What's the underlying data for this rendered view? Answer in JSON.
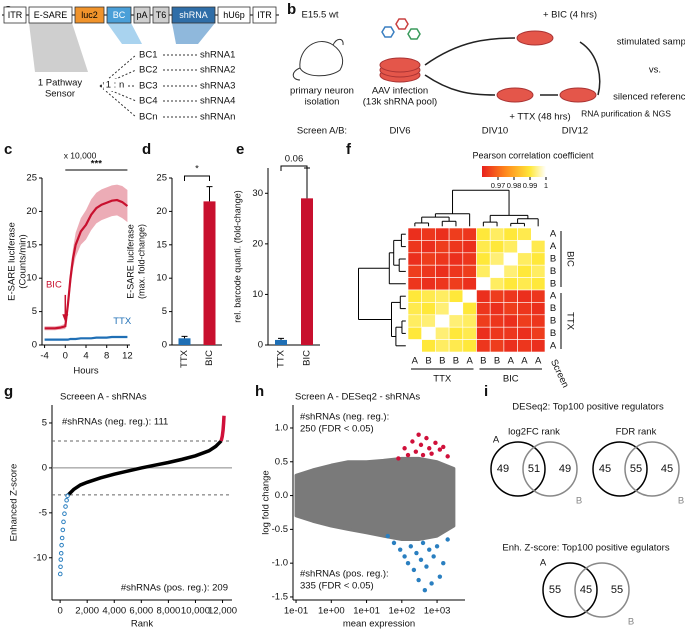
{
  "panel_labels": [
    "a",
    "b",
    "c",
    "d",
    "e",
    "f",
    "g",
    "h",
    "i"
  ],
  "panel_a": {
    "construct": [
      "ITR",
      "E-SARE",
      "luc2",
      "BC",
      "pA",
      "T6",
      "shRNA",
      "hU6p",
      "ITR"
    ],
    "sensor": [
      "1 Pathway",
      "Sensor"
    ],
    "ratio": "1 : n",
    "barcodes": [
      "BC1",
      "BC2",
      "BC3",
      "BC4",
      "BCn"
    ],
    "shrnas": [
      "shRNA1",
      "shRNA2",
      "shRNA3",
      "shRNA4",
      "shRNAn"
    ]
  },
  "panel_b": {
    "mouse": "E15.5 wt",
    "isolation": [
      "primary neuron",
      "isolation"
    ],
    "infection": [
      "AAV infection",
      "(13k shRNA pool)"
    ],
    "bic": "+ BIC (4 hrs)",
    "ttx": "+ TTX (48 hrs)",
    "stimulated": "stimulated sample",
    "vs": "vs.",
    "silenced": "silenced reference",
    "ngs": "RNA purification & NGS",
    "screen": "Screen A/B:",
    "days": [
      "DIV6",
      "DIV10",
      "DIV12"
    ]
  },
  "chart_data": [
    {
      "type": "line",
      "ylabel": [
        "E-SARE luciferase",
        "(Counts/min)"
      ],
      "xlabel": "Hours",
      "y_multiplier": "x 10,000",
      "x": [
        -4,
        -3,
        -2,
        -1,
        0,
        0.5,
        1,
        1.5,
        2,
        3,
        4,
        5,
        6,
        7,
        8,
        9,
        10,
        11,
        12
      ],
      "xlim": [
        -4.5,
        12.5
      ],
      "ylim": [
        0,
        25
      ],
      "xticks": [
        -4,
        0,
        4,
        8,
        12
      ],
      "yticks": [
        0,
        5,
        10,
        15,
        20,
        25
      ],
      "series": [
        {
          "name": "BIC",
          "color": "#c8102e",
          "values": [
            2.5,
            2.5,
            2.5,
            2.6,
            2.8,
            6,
            10,
            13,
            15,
            17,
            18,
            19.5,
            20.5,
            21,
            21.3,
            21.6,
            21.7,
            21.4,
            20.8
          ],
          "upper": [
            2.8,
            2.8,
            2.8,
            2.9,
            3.2,
            7,
            11.5,
            14.5,
            16.8,
            19,
            20.2,
            21.8,
            22.8,
            23.3,
            23.6,
            23.9,
            24,
            23.8,
            23.2
          ],
          "lower": [
            2.2,
            2.2,
            2.2,
            2.3,
            2.4,
            5,
            8.5,
            11.5,
            13.2,
            15,
            15.8,
            17.2,
            18.2,
            18.7,
            19,
            19.3,
            19.4,
            19,
            18.4
          ]
        },
        {
          "name": "TTX",
          "color": "#1f6fb5",
          "values": [
            0.8,
            0.8,
            0.8,
            0.8,
            0.8,
            0.8,
            0.9,
            0.9,
            0.9,
            1,
            1,
            1,
            1.1,
            1.1,
            1.1,
            1.2,
            1.2,
            1.2,
            1.2
          ]
        }
      ],
      "significance": "***",
      "significance_range": [
        0,
        12
      ],
      "arrow_at": 0
    },
    {
      "type": "bar",
      "ylabel": [
        "E-SARE luciferase",
        "(max. fold-change)"
      ],
      "categories": [
        "TTX",
        "BIC"
      ],
      "values": [
        1,
        21.5
      ],
      "errors": [
        0.3,
        2.2
      ],
      "colors": [
        "#1f6fb5",
        "#c8102e"
      ],
      "ylim": [
        0,
        25
      ],
      "yticks": [
        0,
        5,
        10,
        15,
        20,
        25
      ],
      "significance": "*"
    },
    {
      "type": "bar",
      "ylabel": [
        "rel. barcode quanti. (fold-change)"
      ],
      "categories": [
        "TTX",
        "BIC"
      ],
      "values": [
        1,
        29
      ],
      "errors": [
        0.3,
        6
      ],
      "colors": [
        "#1f6fb5",
        "#c8102e"
      ],
      "ylim": [
        0,
        35
      ],
      "yticks": [
        0,
        10,
        20,
        30
      ],
      "significance": "0.06"
    },
    {
      "type": "heatmap",
      "colorbar_title": "Pearson correlation coefficient",
      "colorlim": [
        0.96,
        1
      ],
      "colorbar_ticks": [
        0.97,
        0.98,
        0.99,
        1
      ],
      "color_stops": [
        0.96,
        0.975,
        0.99,
        1
      ],
      "colors": [
        "#e8211d",
        "#ff8a1c",
        "#ffe83a",
        "#ffffff"
      ],
      "row_labels": [
        "A",
        "A",
        "B",
        "B",
        "B",
        "A",
        "B",
        "B",
        "B",
        "A"
      ],
      "col_labels": [
        "A",
        "B",
        "B",
        "B",
        "A",
        "B",
        "B",
        "A",
        "A",
        "A"
      ],
      "row_groups": [
        "BIC",
        "TTX"
      ],
      "col_groups": [
        "TTX",
        "BIC"
      ],
      "screen_label": "Screen",
      "values": [
        [
          0.962,
          0.963,
          0.962,
          0.964,
          0.963,
          0.99,
          0.992,
          0.99,
          0.991,
          1
        ],
        [
          0.963,
          0.962,
          0.964,
          0.963,
          0.962,
          0.991,
          0.99,
          0.992,
          1,
          0.991
        ],
        [
          0.962,
          0.964,
          0.963,
          0.962,
          0.963,
          0.99,
          0.993,
          1,
          0.992,
          0.99
        ],
        [
          0.964,
          0.963,
          0.962,
          0.963,
          0.964,
          0.992,
          1,
          0.993,
          0.99,
          0.992
        ],
        [
          0.963,
          0.962,
          0.963,
          0.964,
          0.962,
          1,
          0.992,
          0.99,
          0.991,
          0.99
        ],
        [
          0.99,
          0.991,
          0.992,
          0.99,
          1,
          0.962,
          0.964,
          0.963,
          0.962,
          0.963
        ],
        [
          0.991,
          0.99,
          0.993,
          1,
          0.99,
          0.963,
          0.962,
          0.964,
          0.963,
          0.962
        ],
        [
          0.992,
          0.993,
          1,
          0.993,
          0.992,
          0.964,
          0.963,
          0.962,
          0.964,
          0.963
        ],
        [
          0.99,
          1,
          0.993,
          0.99,
          0.991,
          0.962,
          0.963,
          0.963,
          0.962,
          0.964
        ],
        [
          1,
          0.99,
          0.992,
          0.991,
          0.99,
          0.963,
          0.964,
          0.962,
          0.963,
          0.962
        ]
      ]
    },
    {
      "type": "curve",
      "title": "Screeen A - shRNAs",
      "xlabel": "Rank",
      "ylabel": "Enhanced Z-score",
      "annotations": [
        "#shRNAs (neg. reg.): 111",
        "#shRNAs (pos. reg.): 209"
      ],
      "xlim": [
        -600,
        12700
      ],
      "ylim": [
        -14.7,
        7
      ],
      "xticks": [
        0,
        {
          "value": 2000,
          "label": "2,000"
        },
        {
          "value": 4000,
          "label": "4,000"
        },
        {
          "value": 6000,
          "label": "6,000"
        },
        {
          "value": 8000,
          "label": "8,000"
        },
        {
          "value": 10000,
          "label": "10,000"
        },
        {
          "value": 12000,
          "label": "12,000"
        }
      ],
      "yticks": [
        -10,
        -5,
        0,
        5
      ],
      "dashed_lines": [
        -3,
        3
      ],
      "zero_line": 0,
      "series": [
        {
          "color": "#000000",
          "style": "line",
          "x": [
            600,
            1000,
            1500,
            2000,
            3000,
            4000,
            5000,
            6000,
            7000,
            8000,
            9000,
            10000,
            11000,
            11500,
            11900
          ],
          "values": [
            -3,
            -2.4,
            -1.9,
            -1.6,
            -1.1,
            -0.7,
            -0.35,
            0,
            0.3,
            0.6,
            0.95,
            1.35,
            1.9,
            2.4,
            3
          ]
        },
        {
          "color": "#2a7fc0",
          "style": "points",
          "x": [
            10,
            30,
            50,
            80,
            110,
            150,
            200,
            250,
            320,
            400,
            480,
            550
          ],
          "values": [
            -11.8,
            -11,
            -10.2,
            -9.5,
            -8.6,
            -7.8,
            -6.9,
            -6,
            -5.1,
            -4.3,
            -3.6,
            -3.1
          ]
        },
        {
          "color": "#d0103a",
          "style": "line",
          "x": [
            11900,
            11980,
            12040,
            12080,
            12110
          ],
          "values": [
            3,
            3.5,
            4.2,
            5,
            5.8
          ]
        }
      ]
    },
    {
      "type": "scatter",
      "title": "Screen A - DESeq2 - shRNAs",
      "xlabel": "mean expression",
      "ylabel": "log fold change",
      "annotations": [
        [
          "#shRNAs (neg. reg.):",
          "250 (FDR < 0.05)"
        ],
        [
          "#shRNAs (pos. reg.):",
          "335 (FDR < 0.05)"
        ]
      ],
      "log_x": true,
      "xlim": [
        0.082,
        6200
      ],
      "ylim": [
        -1.545,
        1.34
      ],
      "xticks": [
        {
          "value": 0.1,
          "label": "1e-01"
        },
        {
          "value": 1,
          "label": "1e+00"
        },
        {
          "value": 10,
          "label": "1e+01"
        },
        {
          "value": 100,
          "label": "1e+02"
        },
        {
          "value": 1000,
          "label": "1e+03"
        }
      ],
      "yticks": [
        -1.5,
        {
          "value": -1,
          "label": "-1.0"
        },
        -0.5,
        {
          "value": 0,
          "label": "0.0"
        },
        0.5,
        {
          "value": 1,
          "label": "1.0"
        }
      ],
      "cloud": {
        "color": "#7a7a7a",
        "x": [
          0.1,
          0.3,
          1,
          3,
          10,
          30,
          100,
          300,
          1000,
          3000
        ],
        "upper": [
          0.3,
          0.38,
          0.45,
          0.5,
          0.5,
          0.52,
          0.55,
          0.55,
          0.5,
          0.4
        ],
        "lower": [
          -0.3,
          -0.38,
          -0.45,
          -0.5,
          -0.55,
          -0.6,
          -0.65,
          -0.65,
          -0.6,
          -0.45
        ]
      },
      "series": [
        {
          "color": "#d0103a",
          "x": [
            80,
            120,
            150,
            200,
            250,
            300,
            350,
            400,
            500,
            600,
            700,
            900,
            1200,
            1500,
            2000
          ],
          "values": [
            0.55,
            0.7,
            0.6,
            0.8,
            0.65,
            0.9,
            0.75,
            0.6,
            0.85,
            0.7,
            0.62,
            0.78,
            0.68,
            0.72,
            0.58
          ]
        },
        {
          "color": "#2a7fc0",
          "x": [
            40,
            60,
            90,
            120,
            150,
            180,
            220,
            260,
            300,
            350,
            400,
            450,
            500,
            600,
            700,
            800,
            1000,
            1200,
            1500,
            2000
          ],
          "values": [
            -0.6,
            -0.7,
            -0.8,
            -0.9,
            -1,
            -0.75,
            -1.1,
            -0.85,
            -1.25,
            -0.95,
            -0.7,
            -1.4,
            -1.05,
            -0.8,
            -1.3,
            -0.9,
            -0.75,
            -1.2,
            -1,
            -0.65
          ]
        }
      ]
    }
  ],
  "panel_i": {
    "title": "DESeq2: Top100 positive regulators",
    "venns": [
      {
        "title": "log2FC rank",
        "a": "A",
        "b": "B",
        "counts": [
          49,
          51,
          49
        ]
      },
      {
        "title": "FDR rank",
        "b": "B",
        "counts": [
          45,
          55,
          45
        ]
      },
      {
        "title": "Enh. Z-score: Top100 positive egulators",
        "a": "A",
        "b": "B",
        "counts": [
          55,
          45,
          55
        ]
      }
    ]
  }
}
